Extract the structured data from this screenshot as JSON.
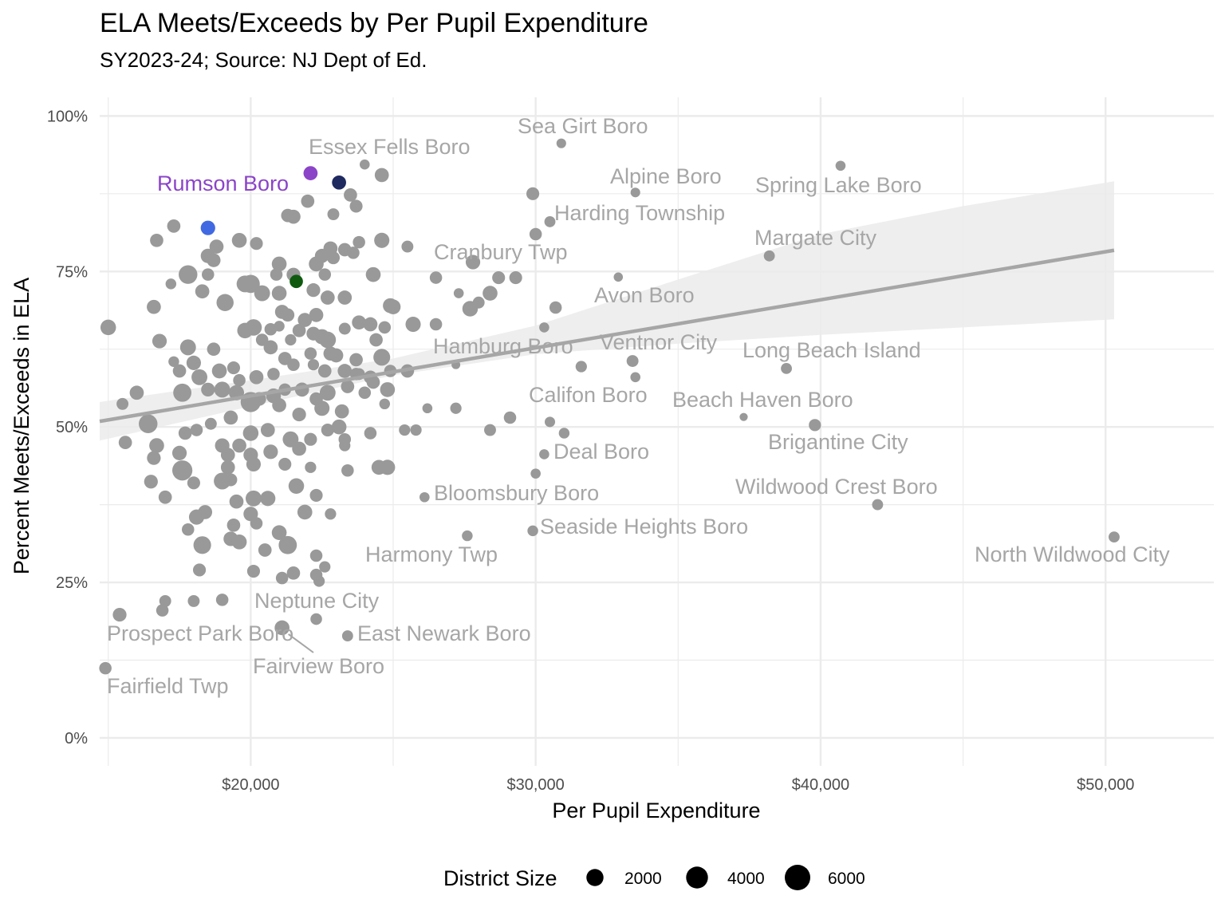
{
  "chart_data": {
    "type": "scatter",
    "title": "ELA Meets/Exceeds by Per Pupil Expenditure",
    "subtitle": "SY2023-24; Source: NJ Dept of Ed.",
    "xlabel": "Per Pupil Expenditure",
    "ylabel": "Percent Meets/Exceeds in ELA",
    "xlim": [
      14700,
      53800
    ],
    "ylim": [
      -0.045,
      1.03
    ],
    "x_ticks": [
      {
        "value": 20000,
        "label": "$20,000"
      },
      {
        "value": 30000,
        "label": "$30,000"
      },
      {
        "value": 40000,
        "label": "$40,000"
      },
      {
        "value": 50000,
        "label": "$50,000"
      }
    ],
    "y_ticks": [
      {
        "value": 0,
        "label": "0%"
      },
      {
        "value": 0.25,
        "label": "25%"
      },
      {
        "value": 0.5,
        "label": "50%"
      },
      {
        "value": 0.75,
        "label": "75%"
      },
      {
        "value": 1.0,
        "label": "100%"
      }
    ],
    "x_minor": [
      15000,
      25000,
      35000,
      45000
    ],
    "y_minor": [
      0.125,
      0.375,
      0.625,
      0.875
    ],
    "grid": true,
    "colors": {
      "default_point": "#999999",
      "label_text": "#a6a6a6",
      "trend_line": "#a6a6a6",
      "ribbon": "#ebebeb",
      "grid": "#ebebeb",
      "highlight_purple": "#8b44c8",
      "highlight_navy": "#1f2a60",
      "highlight_blue": "#4169e1",
      "highlight_green": "#0f5a0f"
    },
    "trend": {
      "x": [
        14700,
        50300
      ],
      "y": [
        0.509,
        0.784
      ],
      "band": [
        {
          "x": 14700,
          "lo": 0.478,
          "hi": 0.54
        },
        {
          "x": 20000,
          "lo": 0.533,
          "hi": 0.575
        },
        {
          "x": 25000,
          "lo": 0.583,
          "hi": 0.61
        },
        {
          "x": 30000,
          "lo": 0.617,
          "hi": 0.663
        },
        {
          "x": 35000,
          "lo": 0.634,
          "hi": 0.737
        },
        {
          "x": 40000,
          "lo": 0.648,
          "hi": 0.81
        },
        {
          "x": 45000,
          "lo": 0.66,
          "hi": 0.855
        },
        {
          "x": 50300,
          "lo": 0.673,
          "hi": 0.895
        }
      ]
    },
    "labeled_points": [
      {
        "name": "Sea Girt Boro",
        "x": 30900,
        "y": 0.956,
        "size": 250
      },
      {
        "name": "Essex Fells Boro",
        "x": 24000,
        "y": 0.922,
        "size": 300
      },
      {
        "name": "Rumson Boro",
        "x": 22100,
        "y": 0.908,
        "size": 1100,
        "color": "#8b44c8"
      },
      {
        "name": "Alpine Boro",
        "x": 33500,
        "y": 0.877,
        "size": 250
      },
      {
        "name": "Spring Lake Boro",
        "x": 40700,
        "y": 0.92,
        "size": 300
      },
      {
        "name": "Harding Township",
        "x": 30500,
        "y": 0.83,
        "size": 450
      },
      {
        "name": "Margate City",
        "x": 38200,
        "y": 0.775,
        "size": 450
      },
      {
        "name": "Cranbury Twp",
        "x": 27800,
        "y": 0.765,
        "size": 1200
      },
      {
        "name": "Avon Boro",
        "x": 32900,
        "y": 0.741,
        "size": 200
      },
      {
        "name": "Hamburg Boro",
        "x": 27200,
        "y": 0.6,
        "size": 150
      },
      {
        "name": "Ventnor City",
        "x": 33400,
        "y": 0.606,
        "size": 600
      },
      {
        "name": "Long Beach Island",
        "x": 38800,
        "y": 0.594,
        "size": 450
      },
      {
        "name": "Califon Boro",
        "x": 30500,
        "y": 0.508,
        "size": 350
      },
      {
        "name": "Beach Haven Boro",
        "x": 37300,
        "y": 0.516,
        "size": 100
      },
      {
        "name": "Brigantine City",
        "x": 39800,
        "y": 0.503,
        "size": 650
      },
      {
        "name": "Deal Boro",
        "x": 30300,
        "y": 0.456,
        "size": 300
      },
      {
        "name": "Wildwood Crest Boro",
        "x": 42000,
        "y": 0.375,
        "size": 450
      },
      {
        "name": "Bloomsbury Boro",
        "x": 26100,
        "y": 0.387,
        "size": 300
      },
      {
        "name": "Seaside Heights Boro",
        "x": 29900,
        "y": 0.333,
        "size": 400
      },
      {
        "name": "North Wildwood City",
        "x": 50300,
        "y": 0.323,
        "size": 450
      },
      {
        "name": "Harmony Twp",
        "x": 27600,
        "y": 0.325,
        "size": 400
      },
      {
        "name": "Neptune City",
        "x": 22300,
        "y": 0.191,
        "size": 550
      },
      {
        "name": "Prospect Park Boro",
        "x": 21100,
        "y": 0.177,
        "size": 1300
      },
      {
        "name": "East Newark Boro",
        "x": 23400,
        "y": 0.164,
        "size": 450
      },
      {
        "name": "Fairview Boro",
        "x": 21100,
        "y": 0.177,
        "size": 0
      },
      {
        "name": "Fairfield Twp",
        "x": 14900,
        "y": 0.112,
        "size": 700
      }
    ],
    "highlight_points": [
      {
        "x": 23100,
        "y": 0.893,
        "size": 1100,
        "color": "#1f2a60"
      },
      {
        "x": 18500,
        "y": 0.82,
        "size": 1200,
        "color": "#4169e1"
      },
      {
        "x": 21600,
        "y": 0.734,
        "size": 900,
        "color": "#0f5a0f"
      }
    ],
    "points": [
      [
        24600,
        0.905,
        1100
      ],
      [
        23500,
        0.873,
        900
      ],
      [
        22000,
        0.863,
        900
      ],
      [
        23700,
        0.855,
        800
      ],
      [
        21500,
        0.838,
        1100
      ],
      [
        21300,
        0.84,
        900
      ],
      [
        22900,
        0.842,
        600
      ],
      [
        17300,
        0.823,
        900
      ],
      [
        16700,
        0.8,
        900
      ],
      [
        18800,
        0.79,
        1100
      ],
      [
        19600,
        0.8,
        1300
      ],
      [
        20200,
        0.795,
        800
      ],
      [
        24600,
        0.8,
        1400
      ],
      [
        23800,
        0.797,
        700
      ],
      [
        22800,
        0.787,
        1100
      ],
      [
        23300,
        0.785,
        900
      ],
      [
        25500,
        0.79,
        600
      ],
      [
        18500,
        0.775,
        1200
      ],
      [
        18700,
        0.768,
        1000
      ],
      [
        22500,
        0.775,
        1100
      ],
      [
        22900,
        0.772,
        800
      ],
      [
        23600,
        0.78,
        700
      ],
      [
        21000,
        0.762,
        1300
      ],
      [
        22300,
        0.762,
        1300
      ],
      [
        17800,
        0.745,
        2600
      ],
      [
        18500,
        0.745,
        700
      ],
      [
        20900,
        0.745,
        700
      ],
      [
        21500,
        0.745,
        1000
      ],
      [
        22600,
        0.745,
        700
      ],
      [
        24300,
        0.745,
        1300
      ],
      [
        20000,
        0.73,
        2400
      ],
      [
        19800,
        0.73,
        1900
      ],
      [
        17200,
        0.73,
        400
      ],
      [
        18300,
        0.718,
        1100
      ],
      [
        20400,
        0.715,
        1600
      ],
      [
        21000,
        0.715,
        1300
      ],
      [
        22200,
        0.72,
        1000
      ],
      [
        22700,
        0.708,
        1100
      ],
      [
        23300,
        0.708,
        1100
      ],
      [
        19100,
        0.7,
        2000
      ],
      [
        16600,
        0.693,
        1100
      ],
      [
        21100,
        0.685,
        1100
      ],
      [
        21300,
        0.68,
        900
      ],
      [
        24900,
        0.695,
        1300
      ],
      [
        22300,
        0.68,
        1100
      ],
      [
        23800,
        0.668,
        1100
      ],
      [
        24200,
        0.665,
        1100
      ],
      [
        24700,
        0.66,
        700
      ],
      [
        20100,
        0.66,
        1800
      ],
      [
        19800,
        0.655,
        1500
      ],
      [
        20700,
        0.657,
        700
      ],
      [
        21000,
        0.662,
        400
      ],
      [
        21700,
        0.655,
        900
      ],
      [
        22200,
        0.65,
        1000
      ],
      [
        22500,
        0.645,
        1400
      ],
      [
        22700,
        0.64,
        1800
      ],
      [
        23300,
        0.658,
        600
      ],
      [
        24400,
        0.64,
        900
      ],
      [
        16800,
        0.638,
        1200
      ],
      [
        17800,
        0.628,
        1600
      ],
      [
        18700,
        0.625,
        900
      ],
      [
        20400,
        0.64,
        700
      ],
      [
        20700,
        0.628,
        1100
      ],
      [
        21400,
        0.64,
        500
      ],
      [
        22100,
        0.618,
        700
      ],
      [
        21200,
        0.61,
        900
      ],
      [
        22800,
        0.618,
        1100
      ],
      [
        23700,
        0.608,
        900
      ],
      [
        24600,
        0.612,
        1900
      ],
      [
        17300,
        0.605,
        400
      ],
      [
        17500,
        0.59,
        900
      ],
      [
        18000,
        0.603,
        1200
      ],
      [
        18200,
        0.58,
        1600
      ],
      [
        18900,
        0.59,
        1300
      ],
      [
        19400,
        0.595,
        800
      ],
      [
        19600,
        0.575,
        700
      ],
      [
        20200,
        0.58,
        1100
      ],
      [
        20800,
        0.585,
        700
      ],
      [
        21500,
        0.6,
        700
      ],
      [
        22200,
        0.6,
        500
      ],
      [
        22600,
        0.59,
        900
      ],
      [
        23300,
        0.59,
        1100
      ],
      [
        23700,
        0.585,
        700
      ],
      [
        24200,
        0.58,
        900
      ],
      [
        24900,
        0.59,
        700
      ],
      [
        25500,
        0.59,
        900
      ],
      [
        17600,
        0.555,
        2400
      ],
      [
        18500,
        0.56,
        1000
      ],
      [
        19000,
        0.56,
        1600
      ],
      [
        19500,
        0.555,
        1400
      ],
      [
        20300,
        0.545,
        1000
      ],
      [
        20800,
        0.55,
        1300
      ],
      [
        21200,
        0.56,
        700
      ],
      [
        21800,
        0.56,
        1100
      ],
      [
        22300,
        0.545,
        900
      ],
      [
        22700,
        0.555,
        1600
      ],
      [
        23400,
        0.565,
        900
      ],
      [
        24000,
        0.555,
        700
      ],
      [
        24800,
        0.56,
        1300
      ],
      [
        16000,
        0.555,
        1100
      ],
      [
        15500,
        0.537,
        600
      ],
      [
        16400,
        0.505,
        2600
      ],
      [
        18600,
        0.505,
        600
      ],
      [
        19300,
        0.515,
        1100
      ],
      [
        20000,
        0.54,
        3200
      ],
      [
        21000,
        0.535,
        1100
      ],
      [
        21700,
        0.52,
        1000
      ],
      [
        22500,
        0.53,
        1400
      ],
      [
        23200,
        0.525,
        1100
      ],
      [
        24700,
        0.537,
        400
      ],
      [
        17700,
        0.49,
        900
      ],
      [
        18100,
        0.495,
        700
      ],
      [
        19000,
        0.47,
        1200
      ],
      [
        19600,
        0.47,
        1100
      ],
      [
        20000,
        0.49,
        1500
      ],
      [
        20600,
        0.495,
        1100
      ],
      [
        21400,
        0.48,
        1600
      ],
      [
        22100,
        0.48,
        800
      ],
      [
        22700,
        0.495,
        800
      ],
      [
        23100,
        0.5,
        1300
      ],
      [
        23300,
        0.48,
        700
      ],
      [
        24200,
        0.49,
        700
      ],
      [
        25400,
        0.495,
        500
      ],
      [
        25800,
        0.495,
        500
      ],
      [
        26200,
        0.53,
        300
      ],
      [
        27200,
        0.53,
        500
      ],
      [
        28400,
        0.495,
        600
      ],
      [
        29100,
        0.515,
        700
      ],
      [
        15600,
        0.475,
        900
      ],
      [
        16700,
        0.47,
        1300
      ],
      [
        17500,
        0.458,
        1200
      ],
      [
        19200,
        0.455,
        1100
      ],
      [
        20000,
        0.455,
        1200
      ],
      [
        20700,
        0.46,
        1200
      ],
      [
        21700,
        0.465,
        1100
      ],
      [
        23300,
        0.47,
        500
      ],
      [
        16600,
        0.45,
        1000
      ],
      [
        19200,
        0.435,
        1100
      ],
      [
        20100,
        0.44,
        1200
      ],
      [
        21200,
        0.44,
        800
      ],
      [
        22100,
        0.435,
        500
      ],
      [
        23400,
        0.43,
        700
      ],
      [
        24500,
        0.435,
        1300
      ],
      [
        24800,
        0.435,
        1400
      ],
      [
        17600,
        0.43,
        3200
      ],
      [
        16500,
        0.412,
        1000
      ],
      [
        18000,
        0.41,
        800
      ],
      [
        19000,
        0.413,
        1900
      ],
      [
        19300,
        0.415,
        800
      ],
      [
        21600,
        0.405,
        1500
      ],
      [
        22300,
        0.39,
        800
      ],
      [
        17000,
        0.387,
        900
      ],
      [
        19500,
        0.38,
        1100
      ],
      [
        20100,
        0.385,
        1600
      ],
      [
        20600,
        0.385,
        1400
      ],
      [
        18400,
        0.363,
        1100
      ],
      [
        18100,
        0.355,
        1400
      ],
      [
        20000,
        0.36,
        1200
      ],
      [
        21900,
        0.363,
        1300
      ],
      [
        22800,
        0.36,
        500
      ],
      [
        19400,
        0.342,
        900
      ],
      [
        20200,
        0.345,
        700
      ],
      [
        19300,
        0.32,
        1200
      ],
      [
        19600,
        0.315,
        1300
      ],
      [
        21000,
        0.33,
        1300
      ],
      [
        21300,
        0.31,
        2400
      ],
      [
        20500,
        0.302,
        900
      ],
      [
        18300,
        0.31,
        2200
      ],
      [
        17800,
        0.335,
        700
      ],
      [
        22300,
        0.293,
        700
      ],
      [
        18200,
        0.27,
        800
      ],
      [
        20100,
        0.268,
        800
      ],
      [
        21100,
        0.257,
        700
      ],
      [
        21500,
        0.265,
        900
      ],
      [
        22300,
        0.262,
        700
      ],
      [
        22600,
        0.275,
        500
      ],
      [
        17000,
        0.22,
        600
      ],
      [
        16900,
        0.205,
        700
      ],
      [
        18000,
        0.22,
        600
      ],
      [
        19000,
        0.222,
        700
      ],
      [
        15400,
        0.198,
        1000
      ],
      [
        22400,
        0.252,
        500
      ],
      [
        15000,
        0.66,
        1500
      ],
      [
        25700,
        0.665,
        1400
      ],
      [
        26500,
        0.665,
        700
      ],
      [
        26500,
        0.74,
        700
      ],
      [
        27300,
        0.715,
        300
      ],
      [
        27700,
        0.69,
        1500
      ],
      [
        28000,
        0.7,
        600
      ],
      [
        28400,
        0.715,
        1300
      ],
      [
        28700,
        0.74,
        800
      ],
      [
        29300,
        0.74,
        800
      ],
      [
        29900,
        0.875,
        800
      ],
      [
        30000,
        0.81,
        700
      ],
      [
        30300,
        0.66,
        300
      ],
      [
        30700,
        0.692,
        700
      ],
      [
        31600,
        0.597,
        500
      ],
      [
        33500,
        0.58,
        300
      ],
      [
        30000,
        0.425,
        300
      ],
      [
        31000,
        0.49,
        400
      ],
      [
        25000,
        0.693,
        1300
      ],
      [
        23800,
        0.585,
        600
      ],
      [
        24300,
        0.572,
        900
      ],
      [
        21900,
        0.672,
        1100
      ],
      [
        23000,
        0.615,
        1100
      ]
    ],
    "legend": {
      "title": "District Size",
      "placement": "bottom",
      "items": [
        {
          "label": "2000",
          "size": 2000
        },
        {
          "label": "4000",
          "size": 4000
        },
        {
          "label": "6000",
          "size": 6000
        }
      ]
    }
  }
}
